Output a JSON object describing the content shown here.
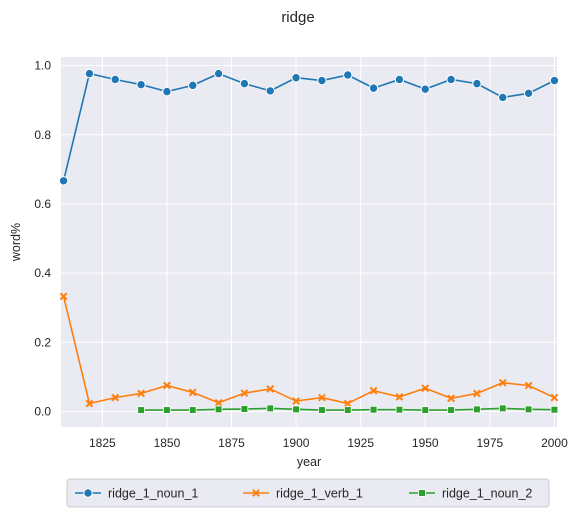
{
  "chart_data": {
    "type": "line",
    "title": "ridge",
    "xlabel": "year",
    "ylabel": "word%",
    "xlim": [
      1809,
      2001
    ],
    "ylim": [
      -0.045,
      1.025
    ],
    "xticks": [
      1825,
      1850,
      1875,
      1900,
      1925,
      1950,
      1975,
      2000
    ],
    "yticks": [
      0.0,
      0.2,
      0.4,
      0.6,
      0.8,
      1.0
    ],
    "xtick_labels": [
      "1825",
      "1850",
      "1875",
      "1900",
      "1925",
      "1950",
      "1975",
      "2000"
    ],
    "ytick_labels": [
      "0.0",
      "0.2",
      "0.4",
      "0.6",
      "0.8",
      "1.0"
    ],
    "grid": true,
    "legend_position": "bottom-center",
    "series": [
      {
        "name": "ridge_1_noun_1",
        "color": "#1f77b4",
        "marker": "circle",
        "x": [
          1810,
          1820,
          1830,
          1840,
          1850,
          1860,
          1870,
          1880,
          1890,
          1900,
          1910,
          1920,
          1930,
          1940,
          1950,
          1960,
          1970,
          1980,
          1990,
          2000
        ],
        "y": [
          0.667,
          0.977,
          0.96,
          0.945,
          0.925,
          0.943,
          0.977,
          0.948,
          0.927,
          0.965,
          0.957,
          0.973,
          0.935,
          0.96,
          0.932,
          0.96,
          0.948,
          0.908,
          0.92,
          0.957
        ]
      },
      {
        "name": "ridge_1_verb_1",
        "color": "#ff7f0e",
        "marker": "x",
        "x": [
          1810,
          1820,
          1830,
          1840,
          1850,
          1860,
          1870,
          1880,
          1890,
          1900,
          1910,
          1920,
          1930,
          1940,
          1950,
          1960,
          1970,
          1980,
          1990,
          2000
        ],
        "y": [
          0.333,
          0.023,
          0.04,
          0.052,
          0.075,
          0.055,
          0.025,
          0.053,
          0.065,
          0.03,
          0.04,
          0.023,
          0.06,
          0.042,
          0.067,
          0.038,
          0.052,
          0.083,
          0.075,
          0.04
        ]
      },
      {
        "name": "ridge_1_noun_2",
        "color": "#2ca02c",
        "marker": "square",
        "x": [
          1840,
          1850,
          1860,
          1870,
          1880,
          1890,
          1900,
          1910,
          1920,
          1930,
          1940,
          1950,
          1960,
          1970,
          1980,
          1990,
          2000
        ],
        "y": [
          0.004,
          0.004,
          0.004,
          0.006,
          0.007,
          0.009,
          0.006,
          0.004,
          0.004,
          0.005,
          0.005,
          0.004,
          0.004,
          0.006,
          0.009,
          0.006,
          0.005
        ]
      }
    ]
  }
}
